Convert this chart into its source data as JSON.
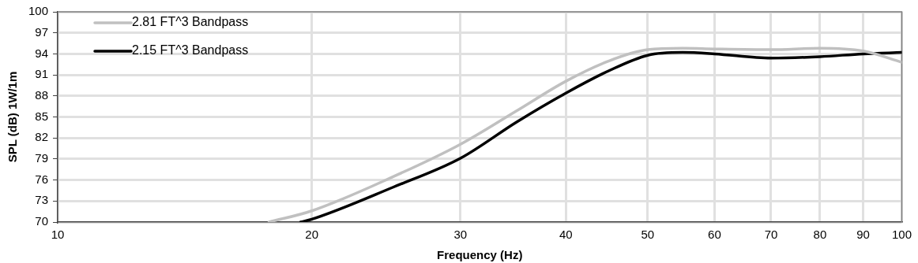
{
  "chart_data": {
    "type": "line",
    "xlabel": "Frequency (Hz)",
    "ylabel": "SPL (dB) 1W/1m",
    "log": "x",
    "xlim": [
      10,
      100
    ],
    "xticks": [
      10,
      20,
      30,
      40,
      50,
      60,
      70,
      80,
      90,
      100
    ],
    "ylim": [
      70,
      100
    ],
    "yticks": [
      70,
      73,
      76,
      79,
      82,
      85,
      88,
      91,
      94,
      97,
      100
    ],
    "grid": true,
    "legend": "top left",
    "marker": "none",
    "line_style": "solid",
    "series": [
      {
        "name": "2.81 FT^3 Bandpass",
        "color": "#c0c0c0",
        "x": [
          17.8,
          20,
          25,
          30,
          35,
          40,
          45,
          50,
          55,
          60,
          70,
          80,
          90,
          100
        ],
        "values": [
          70,
          71.6,
          76.5,
          81.1,
          85.9,
          90.1,
          93.0,
          94.6,
          94.8,
          94.7,
          94.6,
          94.8,
          94.4,
          92.8
        ]
      },
      {
        "name": "2.15 FT^3 Bandpass",
        "color": "#000000",
        "x": [
          19.4,
          20,
          25,
          30,
          35,
          40,
          45,
          50,
          55,
          60,
          70,
          80,
          90,
          100
        ],
        "values": [
          70,
          70.4,
          75.0,
          79.1,
          84.3,
          88.4,
          91.6,
          93.8,
          94.2,
          94.0,
          93.4,
          93.6,
          94.0,
          94.2
        ]
      }
    ]
  }
}
